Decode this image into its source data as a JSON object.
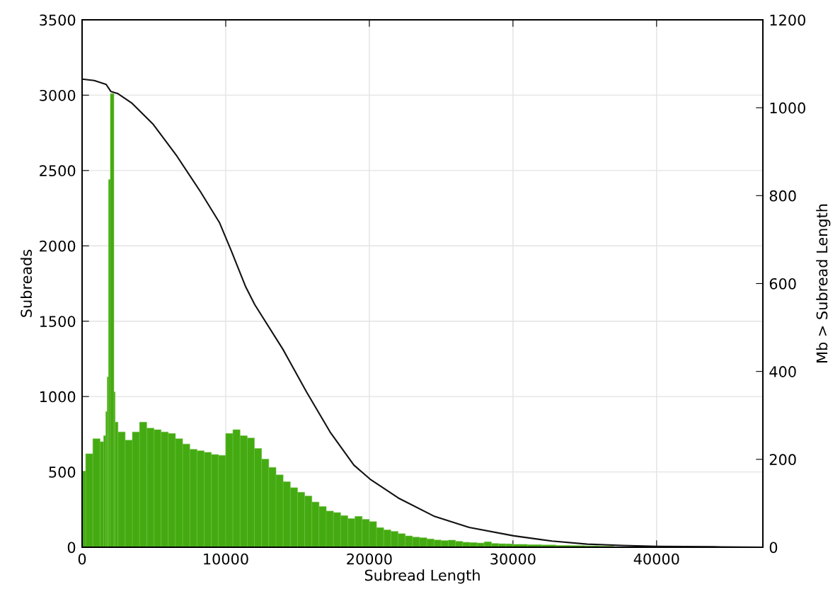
{
  "chart_data": {
    "type": "histogram",
    "xlabel": "Subread Length",
    "ylabel": "Subreads",
    "y2label": "Mb > Subread Length",
    "bins": [
      0,
      250,
      750,
      1250,
      1500,
      1650,
      1750,
      1840,
      1970,
      2215,
      2300,
      2500,
      3000,
      3500,
      4000,
      4500,
      5000,
      5500,
      6000,
      6500,
      7000,
      7500,
      8000,
      8500,
      9000,
      9500,
      10000,
      10500,
      11000,
      11500,
      12000,
      12500,
      13000,
      13500,
      14000,
      14500,
      15000,
      15500,
      16000,
      16500,
      17000,
      17500,
      18000,
      18500,
      19000,
      19500,
      20000,
      20500,
      21000,
      21500,
      22000,
      22500,
      23000,
      23500,
      24000,
      24500,
      25000,
      25500,
      26000,
      26500,
      27000,
      27500,
      28000,
      28500,
      29000,
      29500,
      30000,
      31000,
      32000,
      33000,
      34000,
      35000,
      36000,
      37000,
      44000,
      47400
    ],
    "series": [
      {
        "color": "#44aa11",
        "values": [
          505,
          620,
          720,
          700,
          740,
          900,
          1130,
          2440,
          3010,
          1030,
          830,
          765,
          710,
          765,
          830,
          790,
          780,
          765,
          755,
          720,
          685,
          650,
          640,
          630,
          615,
          610,
          755,
          780,
          740,
          725,
          655,
          585,
          530,
          480,
          435,
          395,
          365,
          340,
          300,
          270,
          240,
          230,
          210,
          190,
          205,
          185,
          170,
          130,
          115,
          105,
          90,
          75,
          67,
          63,
          55,
          48,
          44,
          47,
          39,
          33,
          31,
          28,
          36,
          25,
          23,
          22,
          19,
          17,
          15,
          12,
          11,
          9,
          7,
          null,
          1
        ]
      },
      {
        "type": "line",
        "axis": "y2",
        "color": "#111111",
        "x": [
          0,
          850,
          1675,
          2000,
          2500,
          3480,
          4960,
          6600,
          8240,
          9560,
          10380,
          11370,
          12020,
          13990,
          15630,
          17270,
          18920,
          20050,
          22020,
          24480,
          26950,
          30050,
          32710,
          35170,
          37640,
          40000,
          44000,
          47400
        ],
        "values": [
          1065,
          1062,
          1053,
          1037,
          1032,
          1010,
          962,
          890,
          809,
          739,
          675,
          594,
          552,
          450,
          353,
          262,
          187,
          155,
          112,
          71,
          45,
          26,
          14,
          7,
          4,
          2,
          1,
          0
        ]
      }
    ],
    "xlim": [
      0,
      47400
    ],
    "xticks": [
      0,
      10000,
      20000,
      30000,
      40000
    ],
    "ylim": [
      0,
      3500
    ],
    "yticks": [
      0,
      500,
      1000,
      1500,
      2000,
      2500,
      3000,
      3500
    ],
    "y2lim": [
      0,
      1200
    ],
    "y2ticks": [
      0,
      200,
      400,
      600,
      800,
      1000,
      1200
    ],
    "grid": true
  }
}
